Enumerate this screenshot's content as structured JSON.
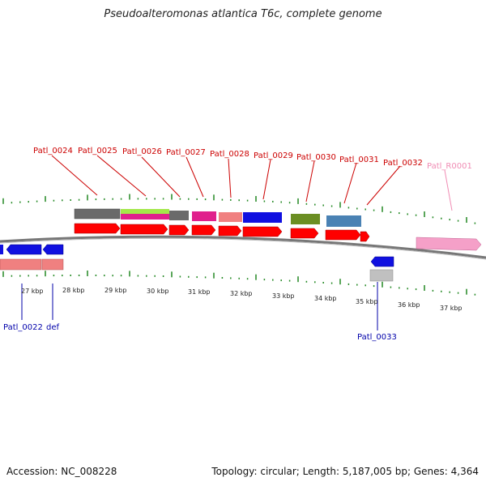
{
  "title": "Pseudoalteromonas atlantica T6c, complete genome",
  "footer": {
    "accession": "Accession: NC_008228",
    "summary": "Topology: circular; Length: 5,187,005 bp; Genes: 4,364"
  },
  "scale_labels": [
    {
      "text": "27 kbp"
    },
    {
      "text": "28 kbp"
    },
    {
      "text": "29 kbp"
    },
    {
      "text": "30 kbp"
    },
    {
      "text": "31 kbp"
    },
    {
      "text": "32 kbp"
    },
    {
      "text": "33 kbp"
    },
    {
      "text": "34 kbp"
    },
    {
      "text": "35 kbp"
    },
    {
      "text": "36 kbp"
    },
    {
      "text": "37 kbp"
    }
  ],
  "top_gene_labels": [
    {
      "text": "Patl_0024",
      "color": "#cc0000"
    },
    {
      "text": "Patl_0025",
      "color": "#cc0000"
    },
    {
      "text": "Patl_0026",
      "color": "#cc0000"
    },
    {
      "text": "Patl_0027",
      "color": "#cc0000"
    },
    {
      "text": "Patl_0028",
      "color": "#cc0000"
    },
    {
      "text": "Patl_0029",
      "color": "#cc0000"
    },
    {
      "text": "Patl_0030",
      "color": "#cc0000"
    },
    {
      "text": "Patl_0031",
      "color": "#cc0000"
    },
    {
      "text": "Patl_0032",
      "color": "#cc0000"
    },
    {
      "text": "Patl_R0001",
      "color": "#f08cb4"
    }
  ],
  "bottom_gene_labels": [
    {
      "text": "Patl_0022",
      "color": "#0000aa"
    },
    {
      "text": "def",
      "color": "#0000aa"
    },
    {
      "text": "Patl_0033",
      "color": "#0000aa"
    }
  ],
  "colors": {
    "forward_gene": "#ff0000",
    "reverse_gene": "#1010e0",
    "rna_gene": "#f5a0c8",
    "tick": "#228822",
    "backbone": "#777777"
  }
}
